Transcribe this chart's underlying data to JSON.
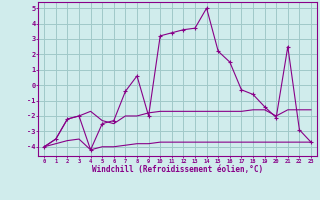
{
  "xlabel": "Windchill (Refroidissement éolien,°C)",
  "x_values": [
    0,
    1,
    2,
    3,
    4,
    5,
    6,
    7,
    8,
    9,
    10,
    11,
    12,
    13,
    14,
    15,
    16,
    17,
    18,
    19,
    20,
    21,
    22,
    23
  ],
  "line_main": [
    -4.0,
    -3.5,
    -2.2,
    -2.0,
    -4.2,
    -2.5,
    -2.3,
    -0.4,
    0.6,
    -2.0,
    3.2,
    3.4,
    3.6,
    3.7,
    5.0,
    2.2,
    1.5,
    -0.3,
    -0.6,
    -1.4,
    -2.1,
    2.5,
    -2.9,
    -3.7
  ],
  "line_upper": [
    -4.0,
    -3.5,
    -2.2,
    -2.0,
    -1.7,
    -2.3,
    -2.5,
    -2.0,
    -2.0,
    -1.8,
    -1.7,
    -1.7,
    -1.7,
    -1.7,
    -1.7,
    -1.7,
    -1.7,
    -1.7,
    -1.6,
    -1.6,
    -2.0,
    -1.6,
    -1.6,
    -1.6
  ],
  "line_lower": [
    -4.0,
    -3.8,
    -3.6,
    -3.5,
    -4.2,
    -4.0,
    -4.0,
    -3.9,
    -3.8,
    -3.8,
    -3.7,
    -3.7,
    -3.7,
    -3.7,
    -3.7,
    -3.7,
    -3.7,
    -3.7,
    -3.7,
    -3.7,
    -3.7,
    -3.7,
    -3.7,
    -3.7
  ],
  "bg_color": "#d0ecec",
  "grid_color": "#a0c8c8",
  "line_color": "#880088",
  "ylim": [
    -4.6,
    5.4
  ],
  "xlim": [
    -0.5,
    23.5
  ],
  "yticks": [
    -4,
    -3,
    -2,
    -1,
    0,
    1,
    2,
    3,
    4,
    5
  ],
  "xticks": [
    0,
    1,
    2,
    3,
    4,
    5,
    6,
    7,
    8,
    9,
    10,
    11,
    12,
    13,
    14,
    15,
    16,
    17,
    18,
    19,
    20,
    21,
    22,
    23
  ]
}
